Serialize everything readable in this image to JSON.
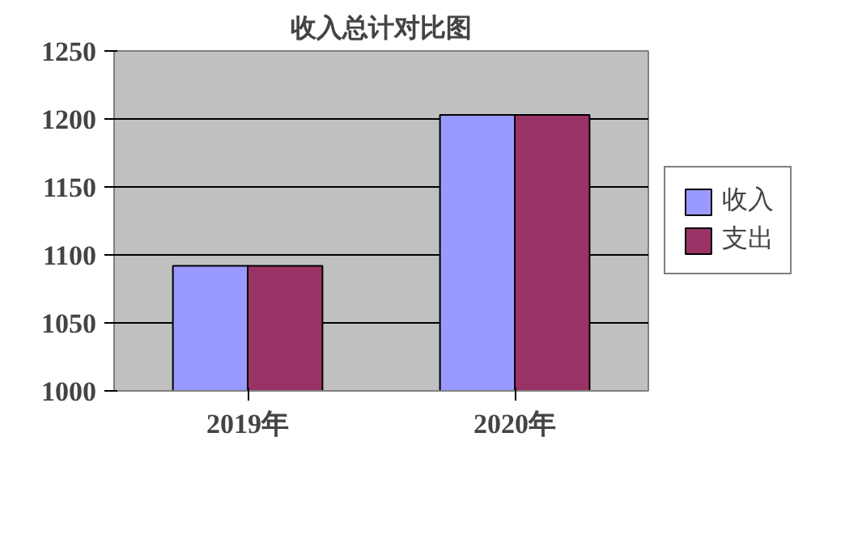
{
  "chart_data": {
    "type": "bar",
    "title": "收入总计对比图",
    "categories": [
      "2019年",
      "2020年"
    ],
    "series": [
      {
        "name": "收入",
        "color": "#9999ff",
        "values": [
          1092,
          1203
        ]
      },
      {
        "name": "支出",
        "color": "#993366",
        "values": [
          1092,
          1203
        ]
      }
    ],
    "ylim": [
      1000,
      1250
    ],
    "yticks": [
      1000,
      1050,
      1100,
      1150,
      1200,
      1250
    ],
    "grid": "y",
    "legend": "right"
  }
}
